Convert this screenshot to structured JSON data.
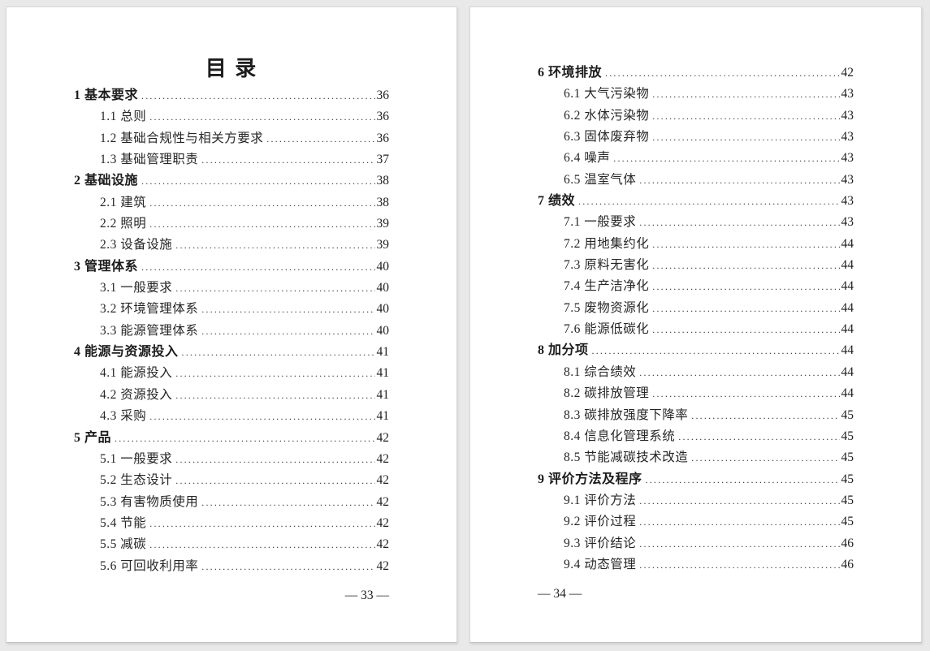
{
  "colors": {
    "background": "#e9e9e9",
    "paper": "#ffffff",
    "text": "#212121",
    "leader_dots": "#2e2e2e"
  },
  "left_page": {
    "title": "目 录",
    "footer": "— 33 —",
    "entries": [
      {
        "level": 1,
        "label": "1 基本要求",
        "page": "36"
      },
      {
        "level": 2,
        "label": "1.1 总则",
        "page": "36"
      },
      {
        "level": 2,
        "label": "1.2 基础合规性与相关方要求",
        "page": "36"
      },
      {
        "level": 2,
        "label": "1.3 基础管理职责",
        "page": "37"
      },
      {
        "level": 1,
        "label": "2 基础设施",
        "page": "38"
      },
      {
        "level": 2,
        "label": "2.1 建筑",
        "page": "38"
      },
      {
        "level": 2,
        "label": "2.2 照明",
        "page": "39"
      },
      {
        "level": 2,
        "label": "2.3 设备设施",
        "page": "39"
      },
      {
        "level": 1,
        "label": "3 管理体系",
        "page": "40"
      },
      {
        "level": 2,
        "label": "3.1 一般要求",
        "page": "40"
      },
      {
        "level": 2,
        "label": "3.2 环境管理体系",
        "page": "40"
      },
      {
        "level": 2,
        "label": "3.3 能源管理体系",
        "page": "40"
      },
      {
        "level": 1,
        "label": "4 能源与资源投入",
        "page": "41"
      },
      {
        "level": 2,
        "label": "4.1 能源投入",
        "page": "41"
      },
      {
        "level": 2,
        "label": "4.2 资源投入",
        "page": "41"
      },
      {
        "level": 2,
        "label": "4.3 采购",
        "page": "41"
      },
      {
        "level": 1,
        "label": "5 产品",
        "page": "42"
      },
      {
        "level": 2,
        "label": "5.1 一般要求",
        "page": "42"
      },
      {
        "level": 2,
        "label": "5.2 生态设计",
        "page": "42"
      },
      {
        "level": 2,
        "label": "5.3 有害物质使用",
        "page": "42"
      },
      {
        "level": 2,
        "label": "5.4 节能",
        "page": "42"
      },
      {
        "level": 2,
        "label": "5.5 减碳",
        "page": "42"
      },
      {
        "level": 2,
        "label": "5.6 可回收利用率",
        "page": "42"
      }
    ]
  },
  "right_page": {
    "footer": "— 34 —",
    "entries": [
      {
        "level": 1,
        "label": "6 环境排放",
        "page": "42"
      },
      {
        "level": 2,
        "label": "6.1 大气污染物",
        "page": "43"
      },
      {
        "level": 2,
        "label": "6.2 水体污染物",
        "page": "43"
      },
      {
        "level": 2,
        "label": "6.3 固体废弃物",
        "page": "43"
      },
      {
        "level": 2,
        "label": "6.4 噪声",
        "page": "43"
      },
      {
        "level": 2,
        "label": "6.5 温室气体",
        "page": "43"
      },
      {
        "level": 1,
        "label": "7 绩效",
        "page": "43"
      },
      {
        "level": 2,
        "label": "7.1 一般要求",
        "page": "43"
      },
      {
        "level": 2,
        "label": "7.2 用地集约化",
        "page": "44"
      },
      {
        "level": 2,
        "label": "7.3 原料无害化",
        "page": "44"
      },
      {
        "level": 2,
        "label": "7.4 生产洁净化",
        "page": "44"
      },
      {
        "level": 2,
        "label": "7.5 废物资源化",
        "page": "44"
      },
      {
        "level": 2,
        "label": "7.6 能源低碳化",
        "page": "44"
      },
      {
        "level": 1,
        "label": "8 加分项",
        "page": "44"
      },
      {
        "level": 2,
        "label": "8.1 综合绩效",
        "page": "44"
      },
      {
        "level": 2,
        "label": "8.2 碳排放管理",
        "page": "44"
      },
      {
        "level": 2,
        "label": "8.3 碳排放强度下降率",
        "page": "45"
      },
      {
        "level": 2,
        "label": "8.4 信息化管理系统",
        "page": "45"
      },
      {
        "level": 2,
        "label": "8.5 节能减碳技术改造",
        "page": "45"
      },
      {
        "level": 1,
        "label": "9 评价方法及程序",
        "page": "45"
      },
      {
        "level": 2,
        "label": "9.1 评价方法",
        "page": "45"
      },
      {
        "level": 2,
        "label": "9.2 评价过程",
        "page": "45"
      },
      {
        "level": 2,
        "label": "9.3 评价结论",
        "page": "46"
      },
      {
        "level": 2,
        "label": "9.4 动态管理",
        "page": "46"
      }
    ]
  }
}
